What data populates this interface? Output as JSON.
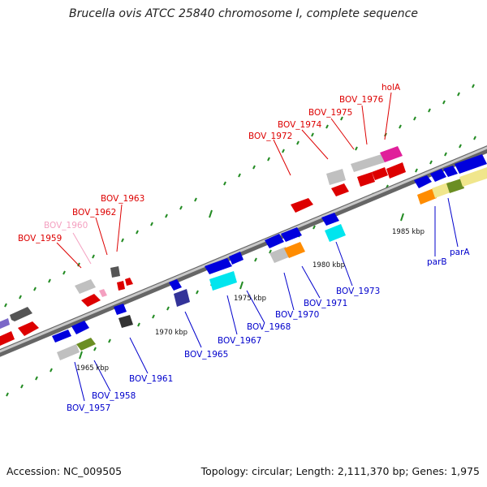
{
  "title": "Brucella ovis ATCC 25840 chromosome I, complete sequence",
  "footer": {
    "accession": "Accession: NC_009505",
    "summary": "Topology: circular; Length: 2,111,370 bp; Genes: 1,975"
  },
  "scale_labels": [
    "1965 kbp",
    "1970 kbp",
    "1975 kbp",
    "1980 kbp",
    "1985 kbp"
  ],
  "gene_labels_top": [
    {
      "text": "BOV_1959",
      "color": "#dd0000"
    },
    {
      "text": "BOV_1960",
      "color": "#f4a0c0"
    },
    {
      "text": "BOV_1962",
      "color": "#dd0000"
    },
    {
      "text": "BOV_1963",
      "color": "#dd0000"
    },
    {
      "text": "BOV_1972",
      "color": "#dd0000"
    },
    {
      "text": "BOV_1974",
      "color": "#dd0000"
    },
    {
      "text": "BOV_1975",
      "color": "#dd0000"
    },
    {
      "text": "BOV_1976",
      "color": "#dd0000"
    },
    {
      "text": "holA",
      "color": "#dd0000"
    }
  ],
  "gene_labels_bottom": [
    {
      "text": "BOV_1957",
      "color": "#0000cc"
    },
    {
      "text": "BOV_1958",
      "color": "#0000cc"
    },
    {
      "text": "BOV_1961",
      "color": "#0000cc"
    },
    {
      "text": "BOV_1965",
      "color": "#0000cc"
    },
    {
      "text": "BOV_1967",
      "color": "#0000cc"
    },
    {
      "text": "BOV_1968",
      "color": "#0000cc"
    },
    {
      "text": "BOV_1970",
      "color": "#0000cc"
    },
    {
      "text": "BOV_1971",
      "color": "#0000cc"
    },
    {
      "text": "BOV_1973",
      "color": "#0000cc"
    },
    {
      "text": "parB",
      "color": "#0000cc"
    },
    {
      "text": "parA",
      "color": "#0000cc"
    }
  ],
  "colors": {
    "forward_strand": "#dd0000",
    "reverse_strand": "#0000cc",
    "backbone": "#888888",
    "tick": "#228b22"
  }
}
